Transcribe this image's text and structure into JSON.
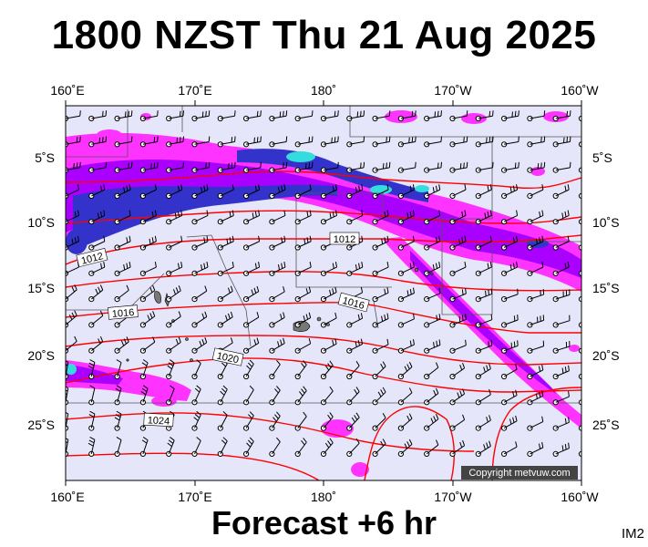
{
  "title": "1800 NZST Thu 21 Aug 2025",
  "subtitle": "Forecast +6 hr",
  "image_code": "IM2",
  "copyright": "Copyright metvuw.com",
  "colors": {
    "background": "#e6e6fb",
    "isobar": "#ff0000",
    "rain_light": "#ff33ff",
    "rain_moderate": "#aa00ff",
    "rain_heavy": "#3333cc",
    "rain_extreme": "#33dddd",
    "coast": "#000000"
  },
  "axes": {
    "top_ticks": [
      "160˚E",
      "170˚E",
      "180˚",
      "170˚W",
      "160˚W"
    ],
    "bottom_ticks": [
      "160˚E",
      "170˚E",
      "180˚",
      "170˚W",
      "160˚W"
    ],
    "left_ticks": [
      "5˚S",
      "10˚S",
      "15˚S",
      "20˚S",
      "25˚S"
    ],
    "right_ticks": [
      "5˚S",
      "10˚S",
      "15˚S",
      "20˚S",
      "25˚S"
    ]
  },
  "isobars": [
    {
      "label": "1012"
    },
    {
      "label": "1012"
    },
    {
      "label": "1016"
    },
    {
      "label": "1016"
    },
    {
      "label": "1020"
    },
    {
      "label": "1024"
    }
  ]
}
